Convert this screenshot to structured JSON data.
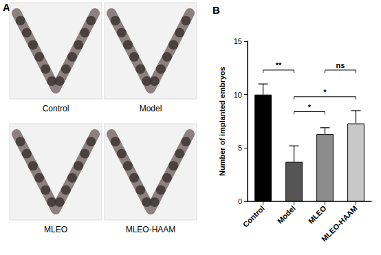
{
  "panel_a": {
    "panel_label": "A",
    "images": [
      "Control",
      "Model",
      "MLEO",
      "MLEO-HAAM"
    ]
  },
  "chart_data": {
    "type": "bar",
    "panel_label": "B",
    "y_label": "Number of implanted embryos",
    "categories": [
      "Control",
      "Model",
      "MLEO",
      "MLEO-HAAM"
    ],
    "values": [
      10,
      3.7,
      6.3,
      7.3
    ],
    "error": [
      1,
      1.5,
      0.6,
      1.2
    ],
    "colors": [
      "#000000",
      "#555555",
      "#8c8c8c",
      "#c8c8c8"
    ],
    "ylim": [
      0,
      15
    ],
    "yticks": [
      0,
      5,
      10,
      15
    ],
    "grid": false,
    "annotations": [
      {
        "from": "Control",
        "to": "Model",
        "label": "**",
        "y": 12.3
      },
      {
        "from": "MLEO",
        "to": "MLEO-HAAM",
        "label": "ns",
        "y": 12.3
      },
      {
        "from": "Model",
        "to": "MLEO-HAAM",
        "label": "*",
        "y": 9.8
      },
      {
        "from": "Model",
        "to": "MLEO",
        "label": "*",
        "y": 8.4
      }
    ]
  }
}
